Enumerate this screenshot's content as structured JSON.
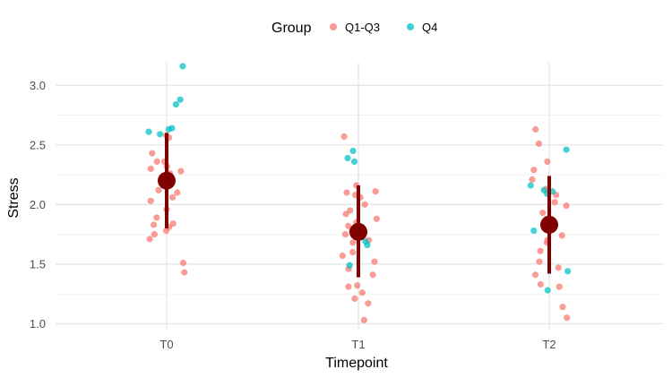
{
  "chart_data": {
    "type": "scatter",
    "xlabel": "Timepoint",
    "ylabel": "Stress",
    "categories": [
      "T0",
      "T1",
      "T2"
    ],
    "ylim": [
      0.95,
      3.25
    ],
    "yticks": [
      "1.0",
      "1.5",
      "2.0",
      "2.5",
      "3.0"
    ],
    "ytick_values": [
      1.0,
      1.5,
      2.0,
      2.5,
      3.0
    ],
    "grid": true,
    "legend": {
      "title": "Group",
      "position": "top",
      "entries": [
        "Q1-Q3",
        "Q4"
      ]
    },
    "series": [
      {
        "name": "Q1-Q3",
        "color": "#F8766D",
        "points": [
          {
            "x": "T0",
            "y": 2.58
          },
          {
            "x": "T0",
            "y": 2.56
          },
          {
            "x": "T0",
            "y": 2.43
          },
          {
            "x": "T0",
            "y": 2.36
          },
          {
            "x": "T0",
            "y": 2.36
          },
          {
            "x": "T0",
            "y": 2.32
          },
          {
            "x": "T0",
            "y": 2.3
          },
          {
            "x": "T0",
            "y": 2.28
          },
          {
            "x": "T0",
            "y": 2.26
          },
          {
            "x": "T0",
            "y": 2.19
          },
          {
            "x": "T0",
            "y": 2.12
          },
          {
            "x": "T0",
            "y": 2.1
          },
          {
            "x": "T0",
            "y": 2.06
          },
          {
            "x": "T0",
            "y": 2.03
          },
          {
            "x": "T0",
            "y": 1.96
          },
          {
            "x": "T0",
            "y": 1.89
          },
          {
            "x": "T0",
            "y": 1.84
          },
          {
            "x": "T0",
            "y": 1.83
          },
          {
            "x": "T0",
            "y": 1.81
          },
          {
            "x": "T0",
            "y": 1.78
          },
          {
            "x": "T0",
            "y": 1.75
          },
          {
            "x": "T0",
            "y": 1.71
          },
          {
            "x": "T0",
            "y": 1.51
          },
          {
            "x": "T0",
            "y": 1.43
          },
          {
            "x": "T1",
            "y": 2.57
          },
          {
            "x": "T1",
            "y": 2.16
          },
          {
            "x": "T1",
            "y": 2.11
          },
          {
            "x": "T1",
            "y": 2.1
          },
          {
            "x": "T1",
            "y": 2.08
          },
          {
            "x": "T1",
            "y": 2.06
          },
          {
            "x": "T1",
            "y": 2.0
          },
          {
            "x": "T1",
            "y": 1.95
          },
          {
            "x": "T1",
            "y": 1.92
          },
          {
            "x": "T1",
            "y": 1.88
          },
          {
            "x": "T1",
            "y": 1.85
          },
          {
            "x": "T1",
            "y": 1.82
          },
          {
            "x": "T1",
            "y": 1.81
          },
          {
            "x": "T1",
            "y": 1.78
          },
          {
            "x": "T1",
            "y": 1.75
          },
          {
            "x": "T1",
            "y": 1.7
          },
          {
            "x": "T1",
            "y": 1.68
          },
          {
            "x": "T1",
            "y": 1.6
          },
          {
            "x": "T1",
            "y": 1.57
          },
          {
            "x": "T1",
            "y": 1.52
          },
          {
            "x": "T1",
            "y": 1.46
          },
          {
            "x": "T1",
            "y": 1.41
          },
          {
            "x": "T1",
            "y": 1.32
          },
          {
            "x": "T1",
            "y": 1.31
          },
          {
            "x": "T1",
            "y": 1.26
          },
          {
            "x": "T1",
            "y": 1.21
          },
          {
            "x": "T1",
            "y": 1.17
          },
          {
            "x": "T1",
            "y": 1.03
          },
          {
            "x": "T2",
            "y": 2.63
          },
          {
            "x": "T2",
            "y": 2.51
          },
          {
            "x": "T2",
            "y": 2.36
          },
          {
            "x": "T2",
            "y": 2.29
          },
          {
            "x": "T2",
            "y": 2.21
          },
          {
            "x": "T2",
            "y": 2.13
          },
          {
            "x": "T2",
            "y": 2.08
          },
          {
            "x": "T2",
            "y": 2.02
          },
          {
            "x": "T2",
            "y": 1.99
          },
          {
            "x": "T2",
            "y": 1.93
          },
          {
            "x": "T2",
            "y": 1.88
          },
          {
            "x": "T2",
            "y": 1.85
          },
          {
            "x": "T2",
            "y": 1.8
          },
          {
            "x": "T2",
            "y": 1.74
          },
          {
            "x": "T2",
            "y": 1.7
          },
          {
            "x": "T2",
            "y": 1.68
          },
          {
            "x": "T2",
            "y": 1.61
          },
          {
            "x": "T2",
            "y": 1.52
          },
          {
            "x": "T2",
            "y": 1.47
          },
          {
            "x": "T2",
            "y": 1.41
          },
          {
            "x": "T2",
            "y": 1.33
          },
          {
            "x": "T2",
            "y": 1.31
          },
          {
            "x": "T2",
            "y": 1.14
          },
          {
            "x": "T2",
            "y": 1.05
          }
        ]
      },
      {
        "name": "Q4",
        "color": "#00BFC4",
        "points": [
          {
            "x": "T0",
            "y": 3.16
          },
          {
            "x": "T0",
            "y": 2.88
          },
          {
            "x": "T0",
            "y": 2.84
          },
          {
            "x": "T0",
            "y": 2.64
          },
          {
            "x": "T0",
            "y": 2.63
          },
          {
            "x": "T0",
            "y": 2.61
          },
          {
            "x": "T0",
            "y": 2.59
          },
          {
            "x": "T1",
            "y": 2.45
          },
          {
            "x": "T1",
            "y": 2.39
          },
          {
            "x": "T1",
            "y": 2.36
          },
          {
            "x": "T1",
            "y": 1.69
          },
          {
            "x": "T1",
            "y": 1.66
          },
          {
            "x": "T1",
            "y": 1.49
          },
          {
            "x": "T2",
            "y": 2.46
          },
          {
            "x": "T2",
            "y": 2.16
          },
          {
            "x": "T2",
            "y": 2.12
          },
          {
            "x": "T2",
            "y": 2.11
          },
          {
            "x": "T2",
            "y": 2.09
          },
          {
            "x": "T2",
            "y": 1.78
          },
          {
            "x": "T2",
            "y": 1.44
          },
          {
            "x": "T2",
            "y": 1.28
          }
        ]
      }
    ],
    "summary": {
      "color": "#800000",
      "points": [
        {
          "x": "T0",
          "mean": 2.2,
          "low": 1.8,
          "high": 2.6
        },
        {
          "x": "T1",
          "mean": 1.77,
          "low": 1.39,
          "high": 2.16
        },
        {
          "x": "T2",
          "mean": 1.83,
          "low": 1.42,
          "high": 2.24
        }
      ]
    }
  }
}
